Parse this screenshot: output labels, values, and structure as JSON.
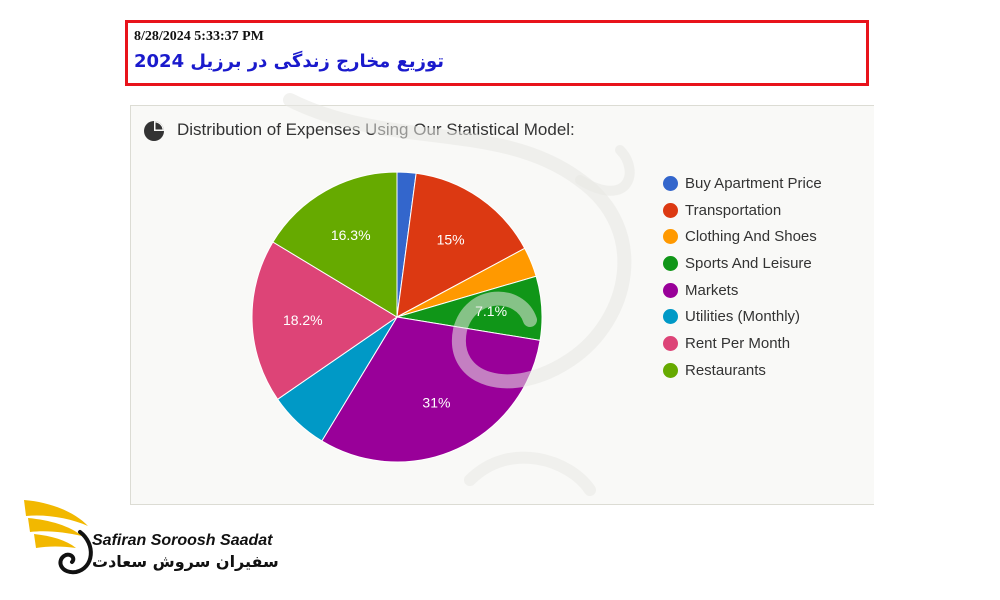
{
  "header": {
    "timestamp": "8/28/2024 5:33:37 PM",
    "title": "توزیع مخارج زندگی در برزیل 2024"
  },
  "panel": {
    "title": "Distribution of Expenses Using Our Statistical Model:"
  },
  "chart_data": {
    "type": "pie",
    "title": "Distribution of Expenses Using Our Statistical Model:",
    "categories": [
      "Buy Apartment Price",
      "Transportation",
      "Clothing And Shoes",
      "Sports And Leisure",
      "Markets",
      "Utilities (Monthly)",
      "Rent Per Month",
      "Restaurants"
    ],
    "values": [
      2.1,
      15,
      3.3,
      7.1,
      31,
      6.7,
      18.2,
      16.3
    ],
    "data_labels": [
      "",
      "15%",
      "",
      "7.1%",
      "31%",
      "",
      "18.2%",
      "16.3%"
    ],
    "colors": [
      "#3366cc",
      "#dc3912",
      "#ff9900",
      "#109618",
      "#990099",
      "#0099c6",
      "#dd4477",
      "#66aa00"
    ],
    "legend_position": "right"
  },
  "logo": {
    "text_en": "Safiran Soroosh Saadat",
    "text_fa": "سفیران سروش سعادت",
    "colors": {
      "wing": "#f2b800",
      "text": "#111111"
    }
  }
}
